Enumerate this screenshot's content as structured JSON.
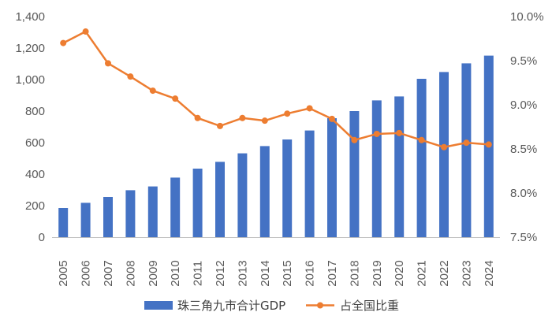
{
  "colors": {
    "bar": "#4472C4",
    "line": "#ED7D31",
    "axis_text": "#595959",
    "axis_line": "#BFBFBF"
  },
  "chart_data": {
    "type": "bar+line",
    "categories": [
      "2005",
      "2006",
      "2007",
      "2008",
      "2009",
      "2010",
      "2011",
      "2012",
      "2013",
      "2014",
      "2015",
      "2016",
      "2017",
      "2018",
      "2019",
      "2020",
      "2021",
      "2022",
      "2023",
      "2024"
    ],
    "series": [
      {
        "name": "珠三角九市合计GDP",
        "type": "bar",
        "axis": "left",
        "values": [
          185,
          218,
          255,
          298,
          322,
          378,
          435,
          478,
          532,
          578,
          620,
          677,
          755,
          800,
          868,
          893,
          1005,
          1048,
          1103,
          1152
        ]
      },
      {
        "name": "占全国比重",
        "type": "line",
        "axis": "right",
        "values": [
          9.7,
          9.83,
          9.47,
          9.32,
          9.16,
          9.07,
          8.85,
          8.76,
          8.85,
          8.82,
          8.9,
          8.96,
          8.84,
          8.6,
          8.67,
          8.68,
          8.6,
          8.52,
          8.57,
          8.55
        ]
      }
    ],
    "y_left": {
      "min": 0,
      "max": 1400,
      "ticks": [
        0,
        200,
        400,
        600,
        800,
        1000,
        1200,
        1400
      ],
      "tick_labels": [
        "0",
        "200",
        "400",
        "600",
        "800",
        "1,000",
        "1,200",
        "1,400"
      ]
    },
    "y_right": {
      "min": 7.5,
      "max": 10.0,
      "ticks": [
        7.5,
        8.0,
        8.5,
        9.0,
        9.5,
        10.0
      ],
      "tick_labels": [
        "7.5%",
        "8.0%",
        "8.5%",
        "9.0%",
        "9.5%",
        "10.0%"
      ]
    },
    "legend": "bottom",
    "grid": false
  }
}
